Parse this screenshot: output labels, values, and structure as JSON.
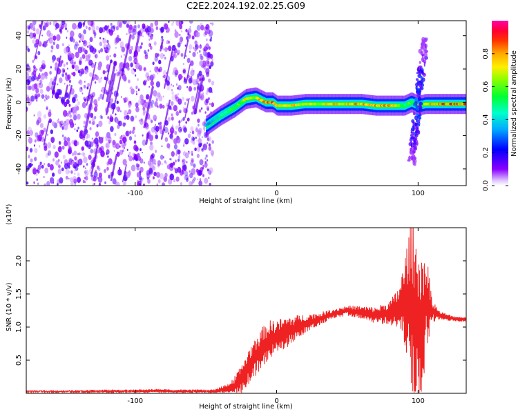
{
  "title": "C2E2.2024.192.02.25.G09",
  "colors": {
    "snr_line": "#ee2222",
    "scatter": "#7a00ff",
    "colorbar": [
      "#8a00ff",
      "#0000ff",
      "#00ccff",
      "#00ff66",
      "#44ff00",
      "#ccff00",
      "#ffdd00",
      "#ff7700",
      "#ff0000",
      "#ff00aa"
    ]
  },
  "chart_data": [
    {
      "type": "heatmap",
      "xlabel": "Height of straight line (km)",
      "ylabel": "Frequency (Hz)",
      "xlim": [
        -177,
        134
      ],
      "ylim": [
        -50,
        49
      ],
      "xticks": [
        -100,
        0,
        100
      ],
      "yticks": [
        -40,
        -20,
        0,
        20,
        40
      ],
      "xtick_labels": [
        "-100",
        "0",
        "100"
      ],
      "ytick_labels": [
        "-40",
        "-20",
        "0",
        "20",
        "40"
      ],
      "colorbar": {
        "label": "Normalized spectral amplitude",
        "range": [
          0,
          1
        ],
        "ticks": [
          0.0,
          0.2,
          0.4,
          0.6,
          0.8
        ],
        "tick_labels": [
          "0.0",
          "0.2",
          "0.4",
          "0.6",
          "0.8"
        ]
      },
      "noise_region": {
        "x": [
          -177,
          -45
        ],
        "amplitude": 0.1
      },
      "signal_track": {
        "x": [
          -50,
          -40,
          -30,
          -22,
          -15,
          -8,
          -3,
          0,
          10,
          20,
          30,
          40,
          50,
          60,
          70,
          80,
          85,
          90,
          95,
          100,
          105,
          110,
          115,
          120,
          125,
          130,
          134
        ],
        "y": [
          -14,
          -8,
          -3,
          2,
          3,
          0,
          0,
          -2,
          -2,
          -1,
          -1,
          -1,
          -1,
          -1,
          -2,
          -2,
          -2,
          -2,
          0,
          -2,
          -1,
          -1,
          -1,
          -1,
          -1,
          -1,
          -1
        ],
        "amplitude": [
          0.35,
          0.45,
          0.6,
          0.75,
          0.7,
          0.9,
          0.95,
          0.8,
          0.8,
          0.75,
          0.75,
          0.8,
          0.8,
          0.85,
          0.85,
          0.85,
          0.7,
          0.55,
          0.6,
          0.6,
          0.7,
          0.85,
          0.9,
          0.9,
          0.9,
          0.9,
          0.9
        ]
      },
      "spread_features": [
        {
          "x": 100,
          "y_range": [
            -38,
            38
          ],
          "amplitude": 0.2
        }
      ]
    },
    {
      "type": "line",
      "xlabel": "Height of straight line (km)",
      "ylabel": "SNR (10 * v/v)",
      "y_multiplier": "(x10⁴)",
      "xlim": [
        -177,
        134
      ],
      "ylim": [
        0,
        2.5
      ],
      "xticks": [
        -100,
        0,
        100
      ],
      "yticks": [
        0.5,
        1.0,
        1.5,
        2.0
      ],
      "xtick_labels": [
        "-100",
        "0",
        "100"
      ],
      "ytick_labels": [
        "0.5",
        "1.0",
        "1.5",
        "2.0"
      ],
      "series": [
        {
          "x": [
            -177,
            -150,
            -120,
            -100,
            -85,
            -70,
            -55,
            -45,
            -40,
            -35,
            -30,
            -25,
            -20,
            -15,
            -10,
            -5,
            0,
            10,
            20,
            30,
            40,
            50,
            60,
            70,
            80,
            85,
            90,
            93,
            96,
            100,
            103,
            106,
            110,
            115,
            120,
            125,
            130,
            134
          ],
          "y": [
            0.02,
            0.02,
            0.03,
            0.03,
            0.04,
            0.03,
            0.03,
            0.03,
            0.04,
            0.06,
            0.1,
            0.2,
            0.4,
            0.55,
            0.7,
            0.8,
            0.85,
            0.95,
            1.05,
            1.12,
            1.2,
            1.25,
            1.22,
            1.18,
            1.22,
            1.25,
            1.35,
            1.4,
            1.3,
            1.0,
            1.1,
            1.4,
            1.25,
            1.18,
            1.15,
            1.13,
            1.12,
            1.12
          ],
          "oscillation": [
            0.02,
            0.02,
            0.02,
            0.02,
            0.02,
            0.02,
            0.02,
            0.02,
            0.04,
            0.08,
            0.12,
            0.18,
            0.22,
            0.25,
            0.25,
            0.25,
            0.22,
            0.18,
            0.12,
            0.08,
            0.06,
            0.06,
            0.08,
            0.1,
            0.15,
            0.25,
            0.5,
            0.85,
            1.1,
            1.25,
            1.0,
            0.6,
            0.15,
            0.05,
            0.04,
            0.03,
            0.03,
            0.03
          ]
        }
      ]
    }
  ]
}
